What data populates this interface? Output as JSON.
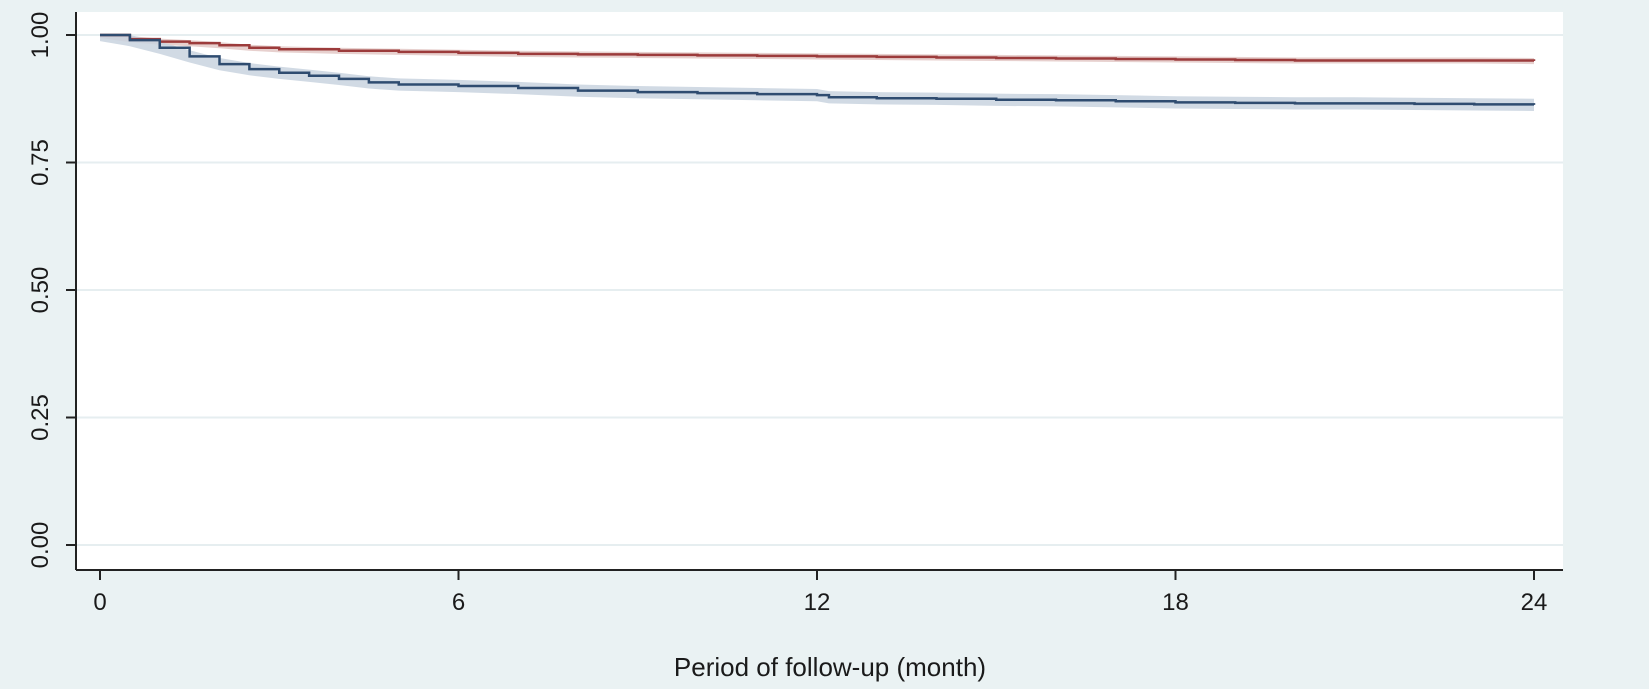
{
  "chart_data": {
    "type": "line",
    "title": "",
    "xlabel": "Period of follow-up (month)",
    "ylabel": "",
    "xlim": [
      0,
      24
    ],
    "ylim": [
      0,
      1
    ],
    "x_ticks": [
      0,
      6,
      12,
      18,
      24
    ],
    "x_tick_labels": [
      "0",
      "6",
      "12",
      "18",
      "24"
    ],
    "y_ticks": [
      0,
      0.25,
      0.5,
      0.75,
      1.0
    ],
    "y_tick_labels": [
      "0.00",
      "0.25",
      "0.50",
      "0.75",
      "1.00"
    ],
    "grid": "horizontal",
    "legend": "none",
    "series": [
      {
        "color": "#9c3b3b",
        "band_color": "#e3c8c6",
        "points": [
          [
            0,
            1.0
          ],
          [
            0.5,
            0.992
          ],
          [
            1,
            0.987
          ],
          [
            1.5,
            0.984
          ],
          [
            2,
            0.98
          ],
          [
            2.5,
            0.975
          ],
          [
            3,
            0.972
          ],
          [
            4,
            0.969
          ],
          [
            5,
            0.967
          ],
          [
            6,
            0.965
          ],
          [
            7,
            0.963
          ],
          [
            8,
            0.962
          ],
          [
            9,
            0.961
          ],
          [
            10,
            0.96
          ],
          [
            11,
            0.959
          ],
          [
            12,
            0.958
          ],
          [
            13,
            0.957
          ],
          [
            14,
            0.956
          ],
          [
            15,
            0.955
          ],
          [
            16,
            0.954
          ],
          [
            17,
            0.953
          ],
          [
            18,
            0.952
          ],
          [
            19,
            0.951
          ],
          [
            20,
            0.95
          ],
          [
            21,
            0.95
          ],
          [
            22,
            0.95
          ],
          [
            23,
            0.95
          ],
          [
            24,
            0.949
          ]
        ],
        "band": 0.006
      },
      {
        "color": "#2f4c70",
        "band_color": "#c9d3df",
        "points": [
          [
            0,
            1.0
          ],
          [
            0.5,
            0.99
          ],
          [
            1,
            0.975
          ],
          [
            1.5,
            0.958
          ],
          [
            2,
            0.943
          ],
          [
            2.5,
            0.933
          ],
          [
            3,
            0.926
          ],
          [
            3.5,
            0.92
          ],
          [
            4,
            0.914
          ],
          [
            4.5,
            0.907
          ],
          [
            5,
            0.903
          ],
          [
            6,
            0.9
          ],
          [
            7,
            0.896
          ],
          [
            8,
            0.891
          ],
          [
            9,
            0.888
          ],
          [
            10,
            0.886
          ],
          [
            11,
            0.884
          ],
          [
            12,
            0.882
          ],
          [
            12.2,
            0.878
          ],
          [
            13,
            0.876
          ],
          [
            14,
            0.875
          ],
          [
            15,
            0.873
          ],
          [
            16,
            0.872
          ],
          [
            17,
            0.87
          ],
          [
            18,
            0.868
          ],
          [
            19,
            0.867
          ],
          [
            20,
            0.866
          ],
          [
            21,
            0.866
          ],
          [
            22,
            0.865
          ],
          [
            23,
            0.864
          ],
          [
            24,
            0.863
          ]
        ],
        "band": 0.012
      }
    ]
  }
}
